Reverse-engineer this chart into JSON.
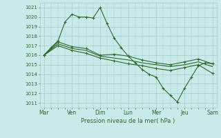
{
  "bg_color": "#c8eae8",
  "grid_color": "#a0cccc",
  "line_color": "#2d6a2d",
  "marker_color": "#2d6a2d",
  "ylabel_ticks": [
    1011,
    1012,
    1013,
    1014,
    1015,
    1016,
    1017,
    1018,
    1019,
    1020,
    1021
  ],
  "ylim": [
    1010.5,
    1021.5
  ],
  "xlabel": "Pression niveau de la mer( hPa )",
  "day_labels": [
    "Mar",
    "Ven",
    "Dim",
    "Lun",
    "Mer",
    "Jeu",
    "Sam"
  ],
  "day_positions": [
    0,
    1,
    2,
    3,
    4,
    5,
    6
  ],
  "series1": {
    "x": [
      0.0,
      0.25,
      0.5,
      0.75,
      1.0,
      1.25,
      1.5,
      1.75,
      2.0,
      2.25,
      2.5,
      2.75,
      3.0,
      3.25,
      3.5,
      3.75,
      4.0,
      4.25,
      4.5,
      4.75,
      5.0,
      5.25,
      5.5,
      5.75,
      6.0
    ],
    "y": [
      1016.0,
      1016.8,
      1017.5,
      1019.5,
      1020.3,
      1020.0,
      1020.0,
      1019.9,
      1021.0,
      1019.3,
      1017.8,
      1016.8,
      1015.9,
      1015.2,
      1014.5,
      1014.0,
      1013.7,
      1012.5,
      1011.8,
      1011.1,
      1012.5,
      1013.7,
      1014.9,
      1015.2,
      1015.1
    ]
  },
  "series2": {
    "x": [
      0.0,
      0.5,
      1.0,
      1.5,
      2.0,
      2.5,
      3.0,
      3.5,
      4.0,
      4.5,
      5.0,
      5.5,
      6.0
    ],
    "y": [
      1016.0,
      1017.4,
      1016.9,
      1016.7,
      1016.0,
      1016.1,
      1015.9,
      1015.5,
      1015.2,
      1015.0,
      1015.3,
      1015.6,
      1015.1
    ]
  },
  "series3": {
    "x": [
      0.0,
      0.5,
      1.0,
      1.5,
      2.0,
      2.5,
      3.0,
      3.5,
      4.0,
      4.5,
      5.0,
      5.5,
      6.0
    ],
    "y": [
      1016.0,
      1017.2,
      1016.7,
      1016.5,
      1015.9,
      1015.7,
      1015.5,
      1015.2,
      1015.0,
      1014.8,
      1015.0,
      1015.3,
      1014.8
    ]
  },
  "series4": {
    "x": [
      0.0,
      0.5,
      1.0,
      1.5,
      2.0,
      2.5,
      3.0,
      3.5,
      4.0,
      4.5,
      5.0,
      5.5,
      6.0
    ],
    "y": [
      1016.0,
      1017.0,
      1016.5,
      1016.2,
      1015.7,
      1015.4,
      1015.1,
      1014.9,
      1014.6,
      1014.4,
      1014.7,
      1015.0,
      1014.1
    ]
  },
  "xlim": [
    -0.15,
    6.15
  ]
}
